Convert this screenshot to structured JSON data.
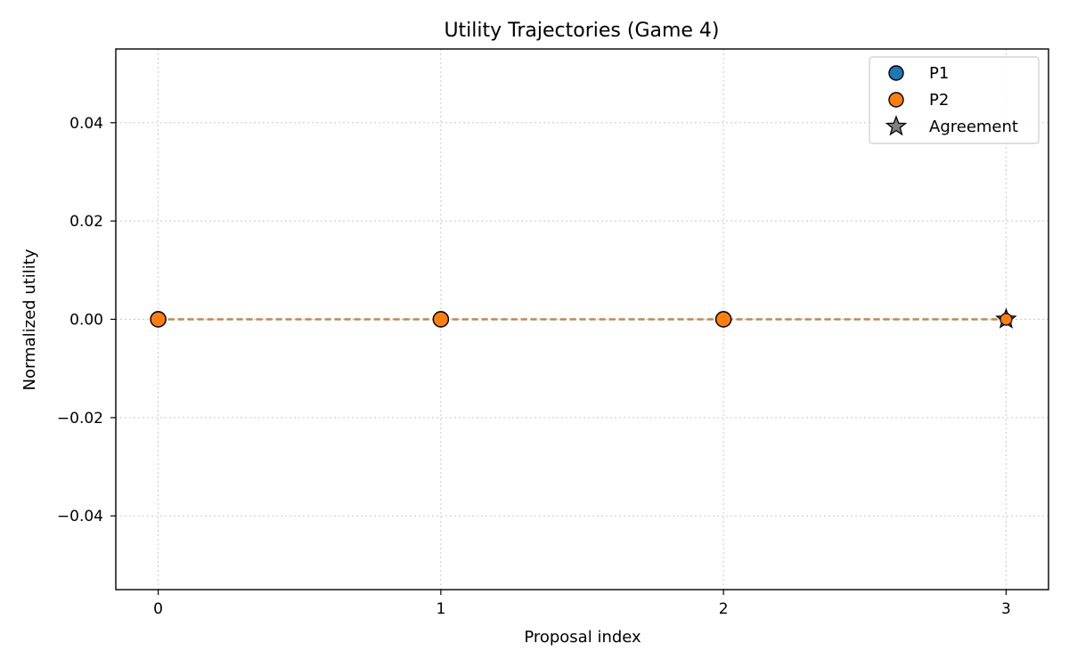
{
  "chart_data": {
    "type": "line",
    "title": "Utility Trajectories (Game 4)",
    "xlabel": "Proposal index",
    "ylabel": "Normalized utility",
    "x": [
      0,
      1,
      2,
      3
    ],
    "xlim": [
      -0.15,
      3.15
    ],
    "ylim": [
      -0.055,
      0.055
    ],
    "x_ticks": [
      0,
      1,
      2,
      3
    ],
    "x_tick_labels": [
      "0",
      "1",
      "2",
      "3"
    ],
    "y_ticks": [
      0.04,
      0.02,
      0.0,
      -0.02,
      -0.04
    ],
    "y_tick_labels": [
      "0.04",
      "0.02",
      "0.00",
      "−0.02",
      "−0.04"
    ],
    "grid": true,
    "legend_position": "top-right",
    "series": [
      {
        "name": "P1",
        "values": [
          0,
          0,
          0,
          0
        ],
        "color": "#1f77b4",
        "line_color": "#1f77b4",
        "marker": "circle"
      },
      {
        "name": "P2",
        "values": [
          0,
          0,
          0,
          0
        ],
        "color": "#ff7f0e",
        "line_color": "#cd853f",
        "marker": "circle"
      }
    ],
    "agreement": {
      "name": "Agreement",
      "x": 3,
      "y": 0,
      "color": "#808080",
      "marker": "star"
    }
  }
}
